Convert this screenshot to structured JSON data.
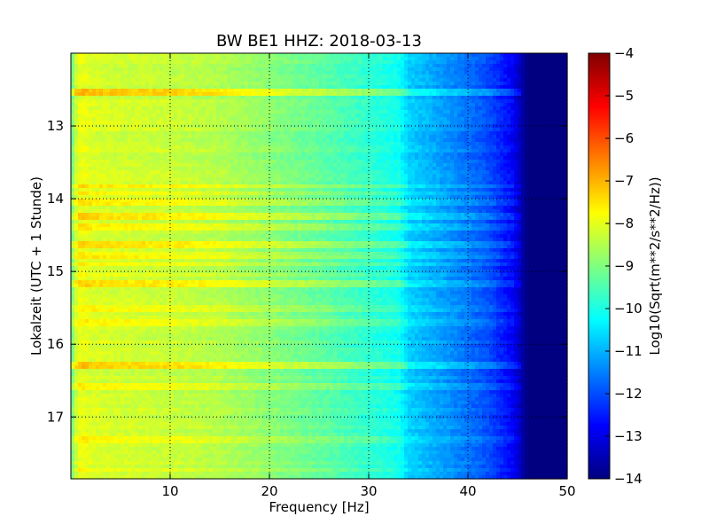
{
  "chart_data": {
    "type": "heatmap",
    "title": "BW BE1 HHZ: 2018-03-13",
    "xlabel": "Frequency [Hz]",
    "ylabel": "Lokalzeit (UTC + 1 Stunde)",
    "colorbar_label": "Log10(Sqrt(m**2/s**2/Hz))",
    "xlim": [
      0,
      50
    ],
    "ylim": [
      12.0,
      17.85
    ],
    "y_inverted": true,
    "clim": [
      -14,
      -4
    ],
    "colormap": "jet",
    "grid": true,
    "x_ticks": [
      10,
      20,
      30,
      40,
      50
    ],
    "x_tick_labels": [
      "10",
      "20",
      "30",
      "40",
      "50"
    ],
    "y_ticks": [
      13,
      14,
      15,
      16,
      17
    ],
    "y_tick_labels": [
      "13",
      "14",
      "15",
      "16",
      "17"
    ],
    "colorbar_ticks": [
      -4,
      -5,
      -6,
      -7,
      -8,
      -9,
      -10,
      -11,
      -12,
      -13,
      -14
    ],
    "colorbar_tick_labels": [
      "−4",
      "−5",
      "−6",
      "−7",
      "−8",
      "−9",
      "−10",
      "−11",
      "−12",
      "−13",
      "−14"
    ],
    "spectrum_profile": {
      "frequency_hz": [
        0,
        0.5,
        1,
        2,
        5,
        10,
        15,
        20,
        25,
        30,
        33,
        34,
        38,
        42,
        44.5,
        46,
        50
      ],
      "log10_psd": [
        -9.3,
        -8.3,
        -7.9,
        -8.1,
        -8.2,
        -8.3,
        -8.5,
        -8.9,
        -9.3,
        -9.8,
        -10.1,
        -10.7,
        -11.3,
        -12.0,
        -12.8,
        -14.0,
        -14.0
      ]
    },
    "noisy_bursts": [
      {
        "time": 12.55,
        "delta_log10_psd": 0.9
      },
      {
        "time": 13.83,
        "delta_log10_psd": 0.7
      },
      {
        "time": 13.93,
        "delta_log10_psd": 0.4
      },
      {
        "time": 14.05,
        "delta_log10_psd": 0.5
      },
      {
        "time": 14.25,
        "delta_log10_psd": 0.6
      },
      {
        "time": 14.4,
        "delta_log10_psd": 0.4
      },
      {
        "time": 14.63,
        "delta_log10_psd": 0.7
      },
      {
        "time": 14.78,
        "delta_log10_psd": 0.5
      },
      {
        "time": 14.9,
        "delta_log10_psd": 0.4
      },
      {
        "time": 15.05,
        "delta_log10_psd": 0.3
      },
      {
        "time": 15.18,
        "delta_log10_psd": 0.8
      },
      {
        "time": 15.52,
        "delta_log10_psd": 0.4
      },
      {
        "time": 15.72,
        "delta_log10_psd": 0.5
      },
      {
        "time": 16.28,
        "delta_log10_psd": 0.9
      },
      {
        "time": 16.57,
        "delta_log10_psd": 0.4
      },
      {
        "time": 17.3,
        "delta_log10_psd": 0.4
      },
      {
        "time": 17.73,
        "delta_log10_psd": 0.3
      }
    ]
  }
}
